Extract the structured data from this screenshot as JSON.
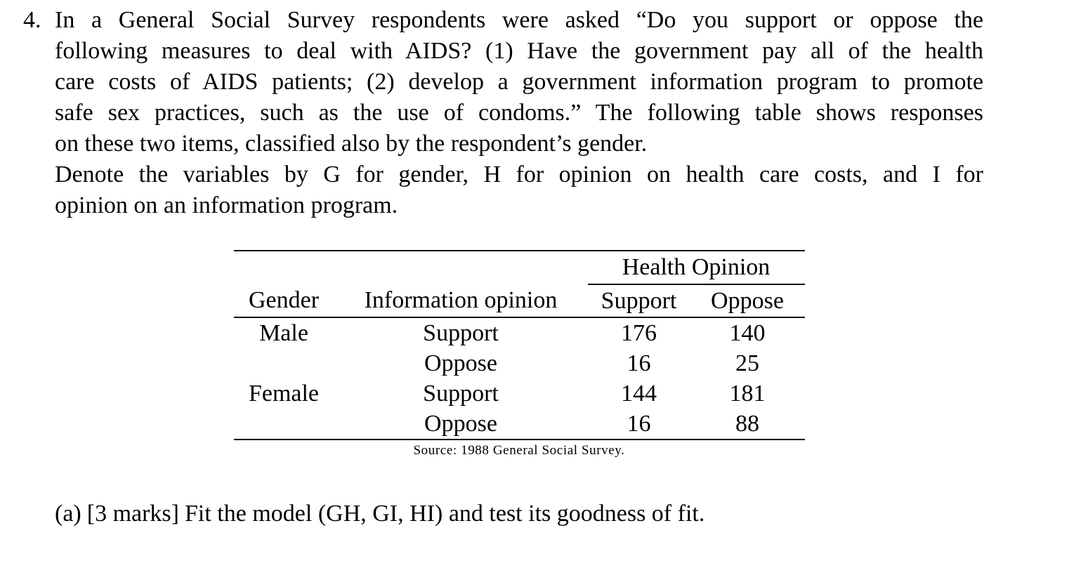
{
  "colors": {
    "text": "#000000",
    "background": "#ffffff"
  },
  "question": {
    "number": "4.",
    "lines": [
      "In a General Social Survey respondents were asked “Do you support or oppose the",
      "following measures to deal with AIDS? (1) Have the government pay all of the health",
      "care costs of AIDS patients; (2) develop a government information program to promote",
      "safe sex practices, such as the use of condoms.” The following table shows responses",
      "on these two items, classified also by the respondent’s gender.",
      "Denote the variables by G for gender, H for opinion on health care costs, and I for",
      "opinion on an information program."
    ]
  },
  "table": {
    "span_header": "Health Opinion",
    "columns": [
      "Gender",
      "Information opinion",
      "Support",
      "Oppose"
    ],
    "rows": [
      [
        "Male",
        "Support",
        "176",
        "140"
      ],
      [
        "",
        "Oppose",
        "16",
        "25"
      ],
      [
        "Female",
        "Support",
        "144",
        "181"
      ],
      [
        "",
        "Oppose",
        "16",
        "88"
      ]
    ],
    "source": "Source: 1988 General Social Survey."
  },
  "parts": {
    "a": {
      "label": "(a)",
      "marks": "[3 marks]",
      "text": "Fit the model (GH, GI, HI) and test its goodness of fit."
    }
  }
}
